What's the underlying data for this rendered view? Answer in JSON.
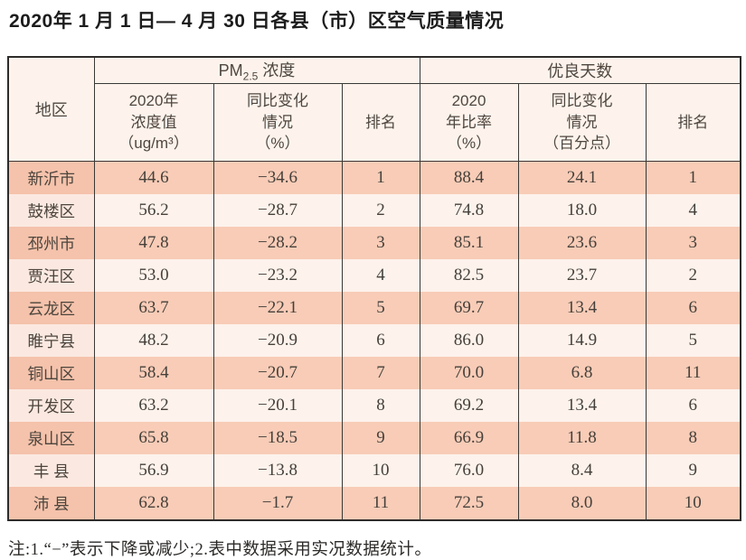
{
  "title": "2020年 1 月 1 日— 4 月 30 日各县（市）区空气质量情况",
  "table": {
    "headers": {
      "region": "地区",
      "pm_group": {
        "prefix": "PM",
        "sub": "2.5",
        "suffix": " 浓度"
      },
      "good_group": "优良天数",
      "pm_value": "2020年\n浓度值\n（ug/m³）",
      "pm_change": "同比变化\n情况\n（%）",
      "pm_rank": "排名",
      "good_ratio": "2020\n年比率\n（%）",
      "good_change": "同比变化\n情况\n（百分点）",
      "good_rank": "排名"
    },
    "rows": [
      {
        "name": "新沂市",
        "pm_value": "44.6",
        "pm_change": "−34.6",
        "pm_rank": "1",
        "good_ratio": "88.4",
        "good_change": "24.1",
        "good_rank": "1"
      },
      {
        "name": "鼓楼区",
        "pm_value": "56.2",
        "pm_change": "−28.7",
        "pm_rank": "2",
        "good_ratio": "74.8",
        "good_change": "18.0",
        "good_rank": "4"
      },
      {
        "name": "邳州市",
        "pm_value": "47.8",
        "pm_change": "−28.2",
        "pm_rank": "3",
        "good_ratio": "85.1",
        "good_change": "23.6",
        "good_rank": "3"
      },
      {
        "name": "贾汪区",
        "pm_value": "53.0",
        "pm_change": "−23.2",
        "pm_rank": "4",
        "good_ratio": "82.5",
        "good_change": "23.7",
        "good_rank": "2"
      },
      {
        "name": "云龙区",
        "pm_value": "63.7",
        "pm_change": "−22.1",
        "pm_rank": "5",
        "good_ratio": "69.7",
        "good_change": "13.4",
        "good_rank": "6"
      },
      {
        "name": "睢宁县",
        "pm_value": "48.2",
        "pm_change": "−20.9",
        "pm_rank": "6",
        "good_ratio": "86.0",
        "good_change": "14.9",
        "good_rank": "5"
      },
      {
        "name": "铜山区",
        "pm_value": "58.4",
        "pm_change": "−20.7",
        "pm_rank": "7",
        "good_ratio": "70.0",
        "good_change": "6.8",
        "good_rank": "11"
      },
      {
        "name": "开发区",
        "pm_value": "63.2",
        "pm_change": "−20.1",
        "pm_rank": "8",
        "good_ratio": "69.2",
        "good_change": "13.4",
        "good_rank": "6"
      },
      {
        "name": "泉山区",
        "pm_value": "65.8",
        "pm_change": "−18.5",
        "pm_rank": "9",
        "good_ratio": "66.9",
        "good_change": "11.8",
        "good_rank": "8"
      },
      {
        "name": "丰 县",
        "pm_value": "56.9",
        "pm_change": "−13.8",
        "pm_rank": "10",
        "good_ratio": "76.0",
        "good_change": "8.4",
        "good_rank": "9"
      },
      {
        "name": "沛 县",
        "pm_value": "62.8",
        "pm_change": "−1.7",
        "pm_rank": "11",
        "good_ratio": "72.5",
        "good_change": "8.0",
        "good_rank": "10"
      }
    ]
  },
  "footnote": "注:1.“−”表示下降或减少;2.表中数据采用实况数据统计。",
  "colors": {
    "row_dark": "#f8ccb7",
    "row_dark_region": "#f5c2ab",
    "row_light": "#fdf2ec",
    "row_light_region": "#fbe9e1",
    "header_bg": "#fdf3ec",
    "border": "#3a3835",
    "text": "#45403a"
  },
  "chart_data": {
    "type": "table",
    "title": "2020年1月1日—4月30日各县（市）区空气质量情况",
    "columns": [
      "地区",
      "PM2.5浓度 2020年浓度值（ug/m³）",
      "PM2.5浓度 同比变化情况（%）",
      "PM2.5浓度 排名",
      "优良天数 2020年比率（%）",
      "优良天数 同比变化情况（百分点）",
      "优良天数 排名"
    ],
    "rows": [
      [
        "新沂市",
        44.6,
        -34.6,
        1,
        88.4,
        24.1,
        1
      ],
      [
        "鼓楼区",
        56.2,
        -28.7,
        2,
        74.8,
        18.0,
        4
      ],
      [
        "邳州市",
        47.8,
        -28.2,
        3,
        85.1,
        23.6,
        3
      ],
      [
        "贾汪区",
        53.0,
        -23.2,
        4,
        82.5,
        23.7,
        2
      ],
      [
        "云龙区",
        63.7,
        -22.1,
        5,
        69.7,
        13.4,
        6
      ],
      [
        "睢宁县",
        48.2,
        -20.9,
        6,
        86.0,
        14.9,
        5
      ],
      [
        "铜山区",
        58.4,
        -20.7,
        7,
        70.0,
        6.8,
        11
      ],
      [
        "开发区",
        63.2,
        -20.1,
        8,
        69.2,
        13.4,
        6
      ],
      [
        "泉山区",
        65.8,
        -18.5,
        9,
        66.9,
        11.8,
        8
      ],
      [
        "丰县",
        56.9,
        -13.8,
        10,
        76.0,
        8.4,
        9
      ],
      [
        "沛县",
        62.8,
        -1.7,
        11,
        72.5,
        8.0,
        10
      ]
    ]
  }
}
